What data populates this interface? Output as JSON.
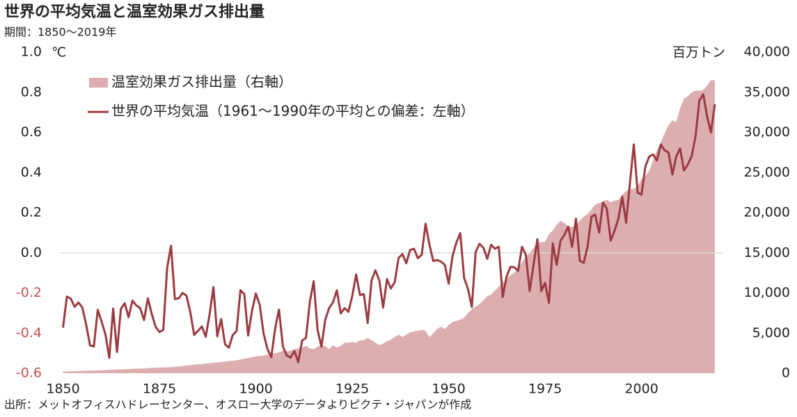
{
  "chart_data": {
    "type": "line_area_dual",
    "title": "世界の平均気温と温室効果ガス排出量",
    "subtitle": "期間：1850～2019年",
    "source": "出所：メットオフィスハドレーセンター、オスロー大学のデータよりピクテ・ジャパンが作成",
    "y_unit": "℃",
    "y2_unit": "百万トン",
    "x": [
      1850,
      1851,
      1852,
      1853,
      1854,
      1855,
      1856,
      1857,
      1858,
      1859,
      1860,
      1861,
      1862,
      1863,
      1864,
      1865,
      1866,
      1867,
      1868,
      1869,
      1870,
      1871,
      1872,
      1873,
      1874,
      1875,
      1876,
      1877,
      1878,
      1879,
      1880,
      1881,
      1882,
      1883,
      1884,
      1885,
      1886,
      1887,
      1888,
      1889,
      1890,
      1891,
      1892,
      1893,
      1894,
      1895,
      1896,
      1897,
      1898,
      1899,
      1900,
      1901,
      1902,
      1903,
      1904,
      1905,
      1906,
      1907,
      1908,
      1909,
      1910,
      1911,
      1912,
      1913,
      1914,
      1915,
      1916,
      1917,
      1918,
      1919,
      1920,
      1921,
      1922,
      1923,
      1924,
      1925,
      1926,
      1927,
      1928,
      1929,
      1930,
      1931,
      1932,
      1933,
      1934,
      1935,
      1936,
      1937,
      1938,
      1939,
      1940,
      1941,
      1942,
      1943,
      1944,
      1945,
      1946,
      1947,
      1948,
      1949,
      1950,
      1951,
      1952,
      1953,
      1954,
      1955,
      1956,
      1957,
      1958,
      1959,
      1960,
      1961,
      1962,
      1963,
      1964,
      1965,
      1966,
      1967,
      1968,
      1969,
      1970,
      1971,
      1972,
      1973,
      1974,
      1975,
      1976,
      1977,
      1978,
      1979,
      1980,
      1981,
      1982,
      1983,
      1984,
      1985,
      1986,
      1987,
      1988,
      1989,
      1990,
      1991,
      1992,
      1993,
      1994,
      1995,
      1996,
      1997,
      1998,
      1999,
      2000,
      2001,
      2002,
      2003,
      2004,
      2005,
      2006,
      2007,
      2008,
      2009,
      2010,
      2011,
      2012,
      2013,
      2014,
      2015,
      2016,
      2017,
      2018,
      2019
    ],
    "series": [
      {
        "name": "温室効果ガス排出量（右軸）",
        "kind": "area",
        "axis": "y2",
        "color": "#dcaeb0",
        "values": [
          200,
          210,
          230,
          250,
          270,
          290,
          310,
          330,
          340,
          360,
          380,
          400,
          420,
          440,
          460,
          480,
          500,
          520,
          540,
          560,
          580,
          600,
          640,
          660,
          680,
          700,
          720,
          740,
          760,
          800,
          850,
          900,
          950,
          1000,
          1050,
          1100,
          1150,
          1200,
          1250,
          1300,
          1350,
          1400,
          1450,
          1500,
          1550,
          1600,
          1700,
          1800,
          1900,
          2000,
          2100,
          2150,
          2200,
          2300,
          2400,
          2500,
          2600,
          2800,
          2700,
          2850,
          3000,
          3100,
          3200,
          3400,
          3100,
          3000,
          3300,
          3500,
          3400,
          3000,
          3500,
          3200,
          3400,
          3800,
          3800,
          3900,
          3800,
          4100,
          4100,
          4400,
          4100,
          3800,
          3500,
          3700,
          4000,
          4200,
          4500,
          4800,
          4500,
          4800,
          5100,
          5200,
          5300,
          5400,
          5300,
          4500,
          5000,
          5500,
          5800,
          5500,
          6000,
          6400,
          6500,
          6700,
          6900,
          7500,
          8000,
          8300,
          8600,
          9100,
          9600,
          9800,
          10300,
          10800,
          11300,
          11700,
          12200,
          12500,
          13100,
          13800,
          14500,
          15000,
          15600,
          16300,
          16300,
          16400,
          17300,
          17800,
          18500,
          19000,
          18700,
          18300,
          18200,
          18400,
          19000,
          19500,
          19800,
          20400,
          21000,
          21200,
          21400,
          21600,
          21300,
          21500,
          21600,
          22200,
          22700,
          22900,
          23000,
          23300,
          24200,
          24600,
          25200,
          26500,
          27800,
          28800,
          29900,
          30900,
          31500,
          31300,
          33000,
          34200,
          34500,
          35000,
          35200,
          35200,
          35300,
          35800,
          36500,
          36500
        ]
      },
      {
        "name": "世界の平均気温（1961～1990年の平均との偏差：左軸）",
        "kind": "line",
        "axis": "y",
        "color": "#9b3a40",
        "values": [
          -0.373,
          -0.218,
          -0.228,
          -0.269,
          -0.248,
          -0.272,
          -0.358,
          -0.461,
          -0.467,
          -0.284,
          -0.343,
          -0.407,
          -0.524,
          -0.278,
          -0.494,
          -0.279,
          -0.251,
          -0.321,
          -0.238,
          -0.262,
          -0.276,
          -0.335,
          -0.227,
          -0.304,
          -0.368,
          -0.395,
          -0.384,
          -0.075,
          0.035,
          -0.23,
          -0.227,
          -0.2,
          -0.213,
          -0.296,
          -0.409,
          -0.389,
          -0.367,
          -0.418,
          -0.307,
          -0.171,
          -0.416,
          -0.33,
          -0.455,
          -0.473,
          -0.41,
          -0.39,
          -0.186,
          -0.206,
          -0.412,
          -0.289,
          -0.203,
          -0.259,
          -0.402,
          -0.479,
          -0.52,
          -0.377,
          -0.283,
          -0.465,
          -0.511,
          -0.522,
          -0.49,
          -0.544,
          -0.437,
          -0.424,
          -0.244,
          -0.141,
          -0.383,
          -0.468,
          -0.333,
          -0.275,
          -0.247,
          -0.187,
          -0.302,
          -0.276,
          -0.294,
          -0.215,
          -0.108,
          -0.21,
          -0.206,
          -0.35,
          -0.137,
          -0.087,
          -0.137,
          -0.273,
          -0.131,
          -0.178,
          -0.147,
          -0.026,
          -0.006,
          -0.052,
          0.014,
          0.02,
          -0.027,
          -0.01,
          0.145,
          0.041,
          -0.041,
          -0.036,
          -0.044,
          -0.06,
          -0.154,
          -0.015,
          0.051,
          0.098,
          -0.125,
          -0.18,
          -0.27,
          0.005,
          0.045,
          0.025,
          -0.03,
          0.04,
          0.02,
          0.03,
          -0.22,
          -0.12,
          -0.07,
          -0.072,
          -0.09,
          0.03,
          -0.01,
          -0.19,
          -0.06,
          0.068,
          -0.19,
          -0.15,
          -0.25,
          0.047,
          -0.06,
          0.06,
          0.09,
          0.13,
          0.03,
          0.17,
          -0.04,
          -0.05,
          0.03,
          0.18,
          0.19,
          0.1,
          0.25,
          0.22,
          0.06,
          0.11,
          0.17,
          0.28,
          0.15,
          0.35,
          0.54,
          0.3,
          0.29,
          0.43,
          0.48,
          0.49,
          0.46,
          0.54,
          0.51,
          0.5,
          0.39,
          0.48,
          0.52,
          0.41,
          0.44,
          0.48,
          0.58,
          0.76,
          0.79,
          0.68,
          0.6,
          0.74
        ]
      }
    ],
    "xlim": [
      1849,
      2021
    ],
    "xticks": [
      1850,
      1875,
      1900,
      1925,
      1950,
      1975,
      2000
    ],
    "ylim": [
      -0.6,
      1.0
    ],
    "yticks": [
      -0.6,
      -0.4,
      -0.2,
      {
        "value": 0,
        "label": "0.0"
      },
      0.2,
      0.4,
      0.6,
      0.8,
      {
        "value": 1,
        "label": "1.0"
      }
    ],
    "y2lim": [
      0,
      40000
    ],
    "y2ticks": [
      0,
      {
        "value": 5000,
        "label": "5,000"
      },
      {
        "value": 10000,
        "label": "10,000"
      },
      {
        "value": 15000,
        "label": "15,000"
      },
      {
        "value": 20000,
        "label": "20,000"
      },
      {
        "value": 25000,
        "label": "25,000"
      },
      {
        "value": 30000,
        "label": "30,000"
      },
      {
        "value": 35000,
        "label": "35,000"
      },
      {
        "value": 40000,
        "label": "40,000"
      }
    ],
    "zero_line": true,
    "negative_tick_color": "#c0504d"
  }
}
